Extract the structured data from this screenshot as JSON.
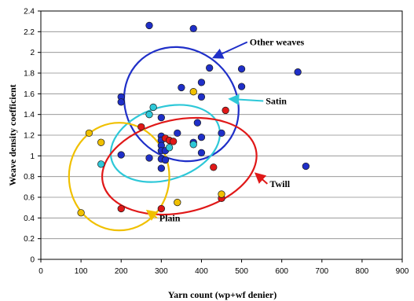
{
  "chart_data": {
    "type": "scatter",
    "title": "",
    "xlabel": "Yarn count (wp+wf denier)",
    "ylabel": "Weave density coefficient",
    "xlim": [
      0,
      900
    ],
    "ylim": [
      0,
      2.4
    ],
    "x_ticks": [
      0,
      100,
      200,
      300,
      400,
      500,
      600,
      700,
      800,
      900
    ],
    "y_ticks": [
      "0",
      "0.2",
      "0.4",
      "0.6",
      "0.8",
      "1",
      "1.2",
      "1.4",
      "1.6",
      "1.8",
      "2",
      "2.2",
      "2.4"
    ],
    "grid": "horizontal",
    "series": [
      {
        "name": "Other weaves",
        "color": "#1f2fc8",
        "points": [
          [
            270,
            2.26
          ],
          [
            380,
            2.23
          ],
          [
            200,
            1.57
          ],
          [
            200,
            1.52
          ],
          [
            350,
            1.66
          ],
          [
            420,
            1.85
          ],
          [
            400,
            1.71
          ],
          [
            500,
            1.84
          ],
          [
            640,
            1.81
          ],
          [
            500,
            1.67
          ],
          [
            400,
            1.57
          ],
          [
            300,
            1.37
          ],
          [
            390,
            1.32
          ],
          [
            400,
            1.18
          ],
          [
            300,
            1.19
          ],
          [
            300,
            1.15
          ],
          [
            300,
            1.1
          ],
          [
            300,
            1.05
          ],
          [
            380,
            1.13
          ],
          [
            310,
            1.05
          ],
          [
            200,
            1.01
          ],
          [
            270,
            0.98
          ],
          [
            300,
            0.97
          ],
          [
            310,
            0.96
          ],
          [
            300,
            0.88
          ],
          [
            660,
            0.9
          ],
          [
            400,
            1.03
          ],
          [
            450,
            1.22
          ],
          [
            340,
            1.22
          ]
        ]
      },
      {
        "name": "Satin",
        "color": "#2ec8d8",
        "points": [
          [
            280,
            1.47
          ],
          [
            270,
            1.4
          ],
          [
            320,
            1.08
          ],
          [
            150,
            0.92
          ],
          [
            380,
            1.11
          ]
        ]
      },
      {
        "name": "Twill",
        "color": "#e01818",
        "points": [
          [
            250,
            1.28
          ],
          [
            310,
            1.17
          ],
          [
            320,
            1.15
          ],
          [
            330,
            1.14
          ],
          [
            460,
            1.44
          ],
          [
            430,
            0.89
          ],
          [
            200,
            0.49
          ],
          [
            300,
            0.49
          ],
          [
            450,
            0.59
          ]
        ]
      },
      {
        "name": "Plain",
        "color": "#f0c000",
        "points": [
          [
            120,
            1.22
          ],
          [
            150,
            1.13
          ],
          [
            100,
            0.45
          ],
          [
            340,
            0.55
          ],
          [
            450,
            0.63
          ],
          [
            380,
            1.62
          ]
        ]
      }
    ],
    "ellipses": [
      {
        "label": "Other weaves",
        "color": "#1f2fc8",
        "cx": 350,
        "cy": 1.5,
        "rx": 135,
        "ry": 0.58,
        "angle": -46
      },
      {
        "label": "Satin",
        "color": "#2ec8d8",
        "cx": 310,
        "cy": 1.12,
        "rx": 140,
        "ry": 0.35,
        "angle": -18
      },
      {
        "label": "Twill",
        "color": "#e01818",
        "cx": 345,
        "cy": 0.9,
        "rx": 195,
        "ry": 0.45,
        "angle": -12
      },
      {
        "label": "Plain",
        "color": "#f0c000",
        "cx": 195,
        "cy": 0.8,
        "rx": 125,
        "ry": 0.52,
        "angle": 0
      }
    ],
    "annotations": [
      {
        "text": "Other weaves",
        "x": 520,
        "y": 2.1,
        "arrow_to": [
          430,
          1.95
        ],
        "color": "#1f2fc8"
      },
      {
        "text": "Satin",
        "x": 560,
        "y": 1.53,
        "arrow_to": [
          470,
          1.55
        ],
        "color": "#2ec8d8"
      },
      {
        "text": "Twill",
        "x": 570,
        "y": 0.73,
        "arrow_to": [
          535,
          0.83
        ],
        "color": "#e01818"
      },
      {
        "text": "Plain",
        "x": 295,
        "y": 0.4,
        "arrow_to": [
          265,
          0.47
        ],
        "color": "#f0c000"
      }
    ]
  }
}
